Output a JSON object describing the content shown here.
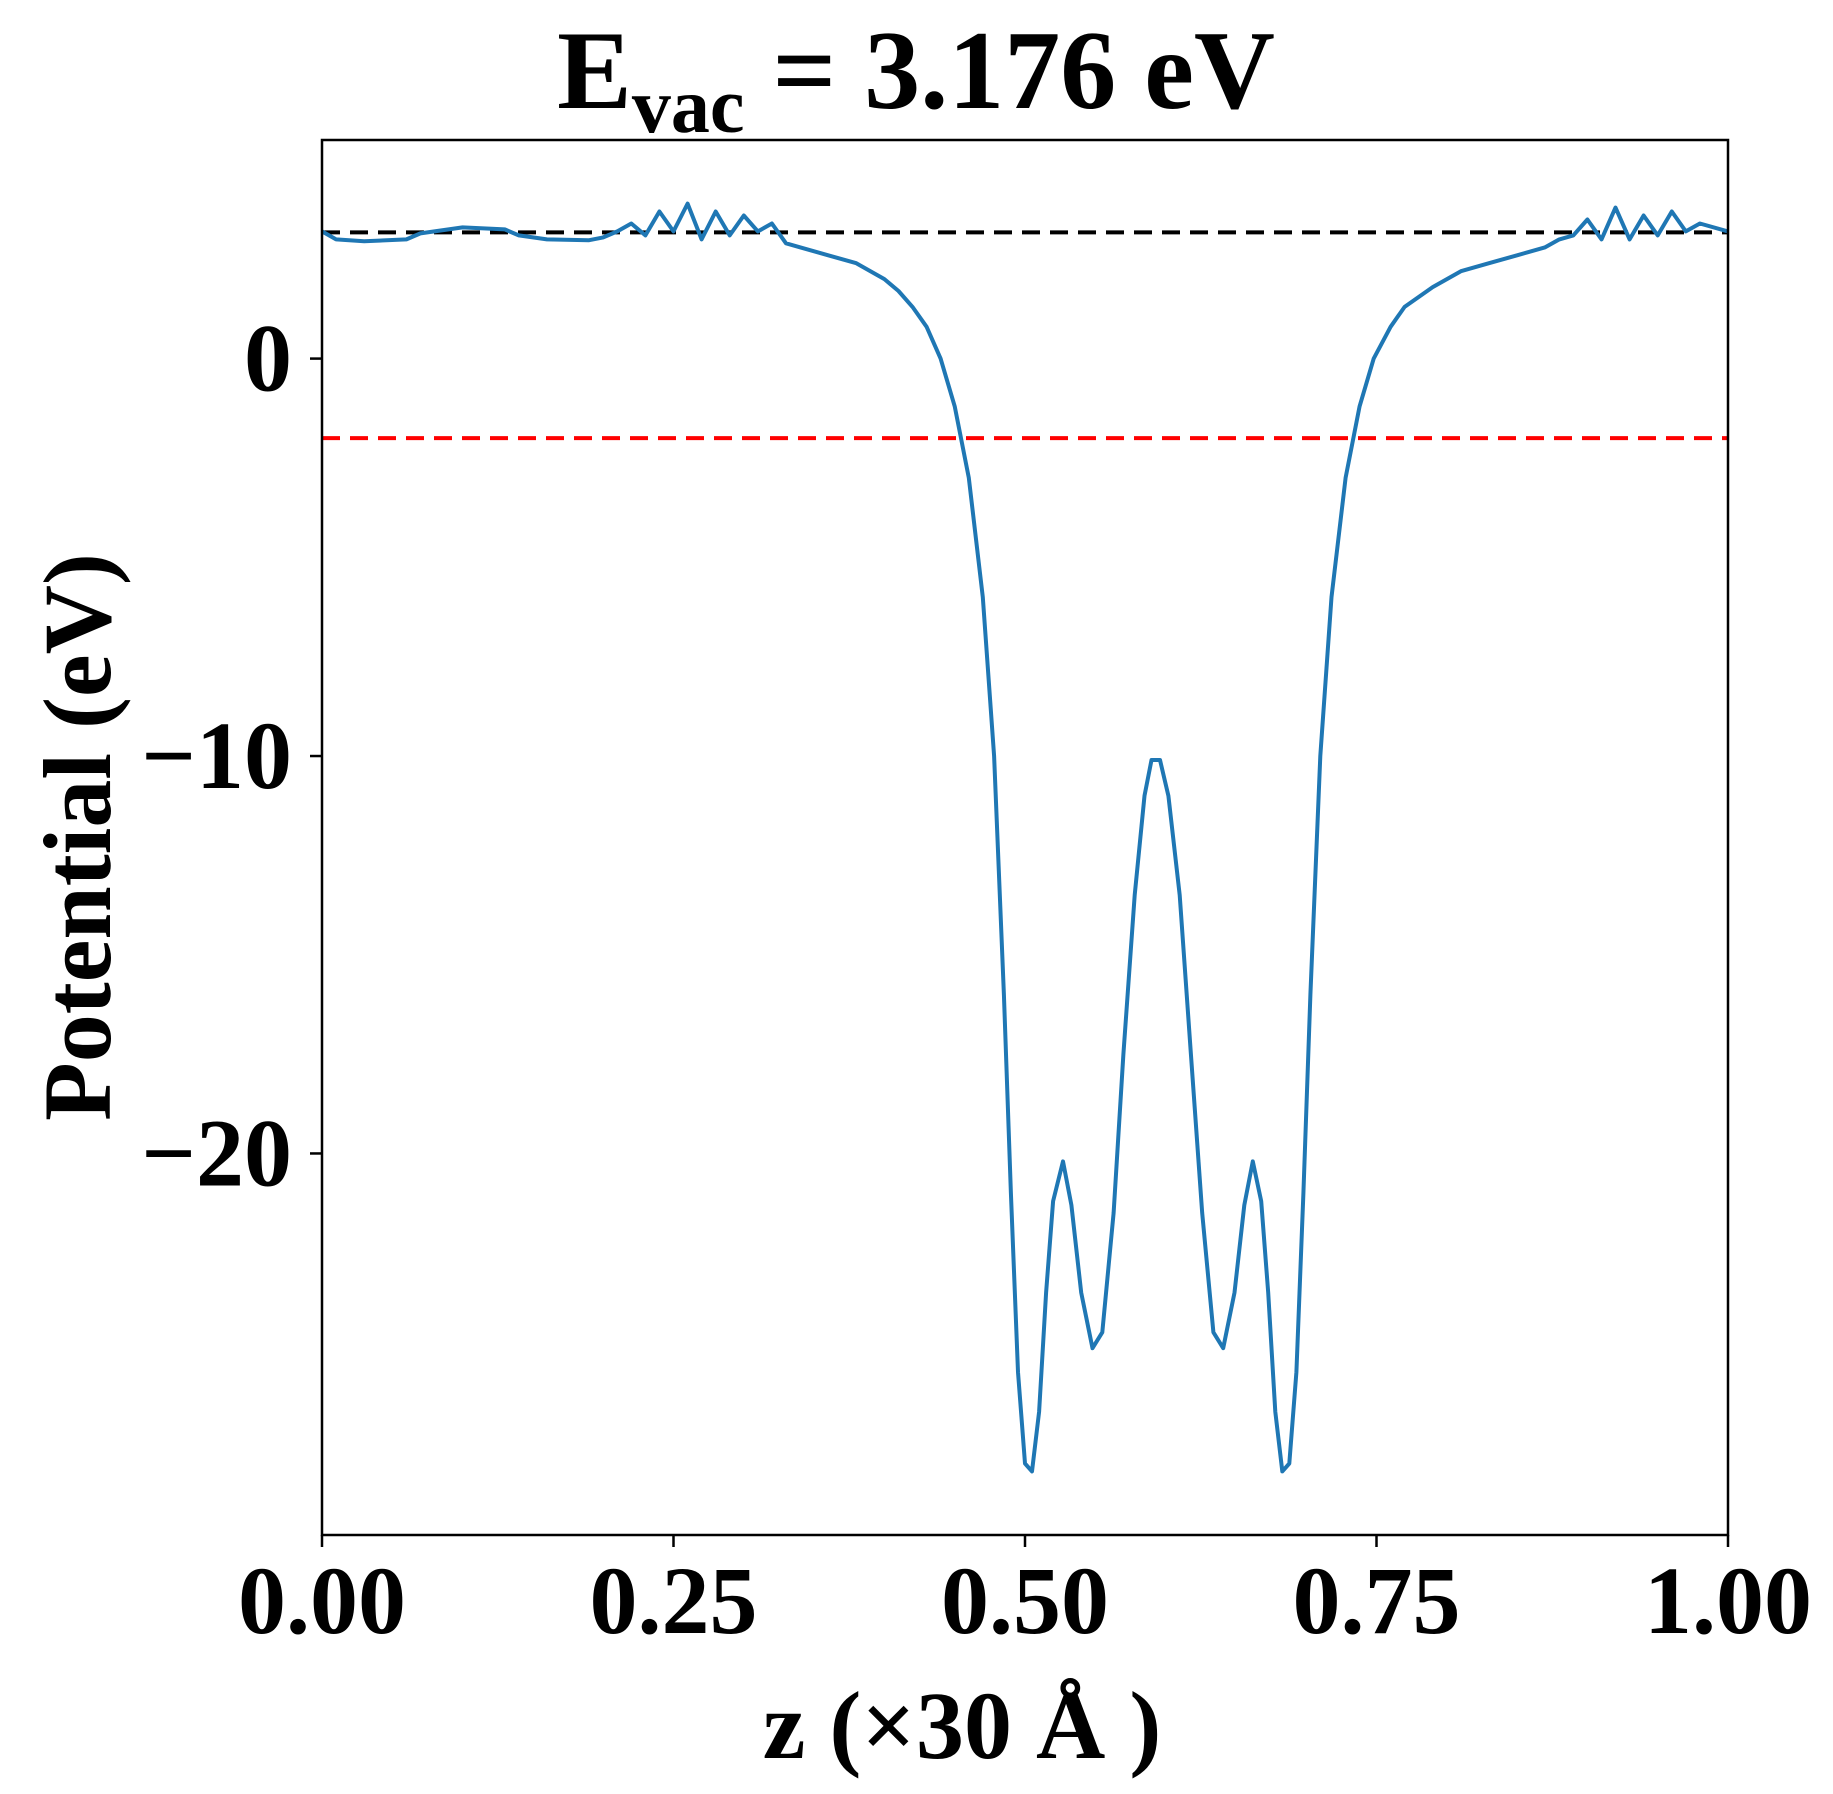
{
  "chart_data": {
    "type": "line",
    "title": {
      "main": "E",
      "sub": "vac",
      "rest": " = 3.176 eV"
    },
    "xlabel": "z (×30 Å )",
    "ylabel": "Potential (eV)",
    "xlim": [
      0,
      1
    ],
    "ylim": [
      -29.6,
      5.5
    ],
    "xticks": [
      {
        "value": 0.0,
        "label": "0.00"
      },
      {
        "value": 0.25,
        "label": "0.25"
      },
      {
        "value": 0.5,
        "label": "0.50"
      },
      {
        "value": 0.75,
        "label": "0.75"
      },
      {
        "value": 1.0,
        "label": "1.00"
      }
    ],
    "yticks": [
      {
        "value": 0,
        "label": "0"
      },
      {
        "value": -10,
        "label": "−10"
      },
      {
        "value": -20,
        "label": "−20"
      }
    ],
    "reference_lines": [
      {
        "name": "vacuum-level",
        "y": 3.176,
        "color": "#000000",
        "dash": true
      },
      {
        "name": "fermi-level",
        "y": -2.0,
        "color": "#ff0000",
        "dash": true
      }
    ],
    "grid": false,
    "series": [
      {
        "color": "#1f77b4",
        "points": [
          [
            0.0,
            3.2
          ],
          [
            0.01,
            3.0
          ],
          [
            0.03,
            2.95
          ],
          [
            0.06,
            3.0
          ],
          [
            0.07,
            3.15
          ],
          [
            0.1,
            3.3
          ],
          [
            0.13,
            3.25
          ],
          [
            0.14,
            3.1
          ],
          [
            0.16,
            3.0
          ],
          [
            0.19,
            2.98
          ],
          [
            0.2,
            3.05
          ],
          [
            0.21,
            3.2
          ],
          [
            0.22,
            3.4
          ],
          [
            0.23,
            3.1
          ],
          [
            0.24,
            3.7
          ],
          [
            0.25,
            3.2
          ],
          [
            0.26,
            3.9
          ],
          [
            0.27,
            3.0
          ],
          [
            0.28,
            3.7
          ],
          [
            0.29,
            3.1
          ],
          [
            0.3,
            3.6
          ],
          [
            0.31,
            3.2
          ],
          [
            0.32,
            3.4
          ],
          [
            0.33,
            2.9
          ],
          [
            0.34,
            2.8
          ],
          [
            0.36,
            2.6
          ],
          [
            0.38,
            2.4
          ],
          [
            0.4,
            2.0
          ],
          [
            0.41,
            1.7
          ],
          [
            0.42,
            1.3
          ],
          [
            0.43,
            0.8
          ],
          [
            0.44,
            0.0
          ],
          [
            0.45,
            -1.2
          ],
          [
            0.46,
            -3.0
          ],
          [
            0.47,
            -6.0
          ],
          [
            0.478,
            -10.0
          ],
          [
            0.485,
            -16.0
          ],
          [
            0.49,
            -21.0
          ],
          [
            0.495,
            -25.5
          ],
          [
            0.5,
            -27.8
          ],
          [
            0.505,
            -28.0
          ],
          [
            0.51,
            -26.5
          ],
          [
            0.515,
            -23.5
          ],
          [
            0.52,
            -21.2
          ],
          [
            0.527,
            -20.2
          ],
          [
            0.533,
            -21.3
          ],
          [
            0.54,
            -23.5
          ],
          [
            0.548,
            -24.9
          ],
          [
            0.555,
            -24.5
          ],
          [
            0.563,
            -21.5
          ],
          [
            0.57,
            -17.5
          ],
          [
            0.578,
            -13.5
          ],
          [
            0.585,
            -11.0
          ],
          [
            0.59,
            -10.1
          ],
          [
            0.596,
            -10.1
          ],
          [
            0.602,
            -11.0
          ],
          [
            0.61,
            -13.5
          ],
          [
            0.618,
            -17.5
          ],
          [
            0.626,
            -21.5
          ],
          [
            0.634,
            -24.5
          ],
          [
            0.641,
            -24.9
          ],
          [
            0.649,
            -23.5
          ],
          [
            0.656,
            -21.3
          ],
          [
            0.662,
            -20.2
          ],
          [
            0.668,
            -21.2
          ],
          [
            0.673,
            -23.5
          ],
          [
            0.678,
            -26.5
          ],
          [
            0.683,
            -28.0
          ],
          [
            0.688,
            -27.8
          ],
          [
            0.693,
            -25.5
          ],
          [
            0.698,
            -21.0
          ],
          [
            0.703,
            -16.0
          ],
          [
            0.71,
            -10.0
          ],
          [
            0.718,
            -6.0
          ],
          [
            0.728,
            -3.0
          ],
          [
            0.738,
            -1.2
          ],
          [
            0.748,
            0.0
          ],
          [
            0.76,
            0.8
          ],
          [
            0.77,
            1.3
          ],
          [
            0.79,
            1.8
          ],
          [
            0.81,
            2.2
          ],
          [
            0.83,
            2.4
          ],
          [
            0.85,
            2.6
          ],
          [
            0.87,
            2.8
          ],
          [
            0.88,
            3.0
          ],
          [
            0.89,
            3.1
          ],
          [
            0.9,
            3.5
          ],
          [
            0.91,
            3.0
          ],
          [
            0.92,
            3.8
          ],
          [
            0.93,
            3.0
          ],
          [
            0.94,
            3.6
          ],
          [
            0.95,
            3.1
          ],
          [
            0.96,
            3.7
          ],
          [
            0.97,
            3.2
          ],
          [
            0.98,
            3.4
          ],
          [
            1.0,
            3.2
          ]
        ]
      }
    ]
  }
}
